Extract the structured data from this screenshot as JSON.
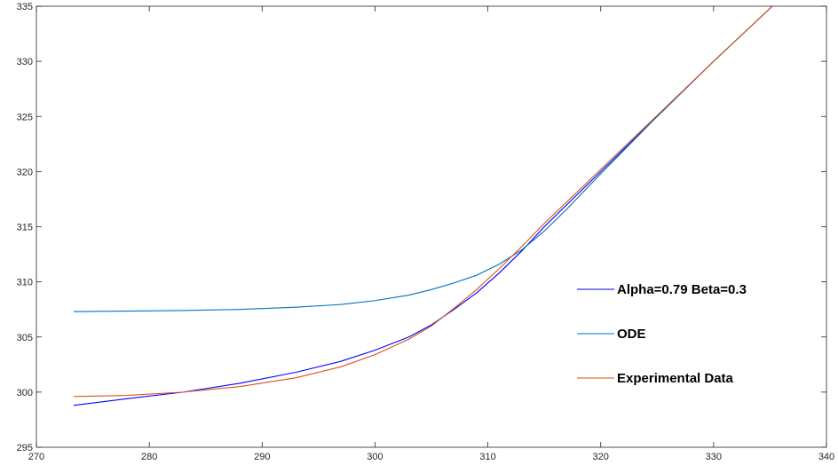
{
  "chart_data": {
    "type": "line",
    "title": "",
    "xlabel": "",
    "ylabel": "",
    "xlim": [
      270,
      340
    ],
    "ylim": [
      295,
      335
    ],
    "xticks": [
      270,
      280,
      290,
      300,
      310,
      320,
      330,
      340
    ],
    "yticks": [
      295,
      300,
      305,
      310,
      315,
      320,
      325,
      330,
      335
    ],
    "grid": false,
    "legend_position": "right",
    "series": [
      {
        "name": "Alpha=0.79 Beta=0.3",
        "color": "#0000ff",
        "points": [
          [
            273.3,
            298.8
          ],
          [
            278,
            299.4
          ],
          [
            283,
            300.0
          ],
          [
            288,
            300.8
          ],
          [
            293,
            301.8
          ],
          [
            297,
            302.8
          ],
          [
            300,
            303.8
          ],
          [
            303,
            305.0
          ],
          [
            305,
            306.1
          ],
          [
            307,
            307.5
          ],
          [
            309,
            309.0
          ],
          [
            311,
            310.8
          ],
          [
            313,
            312.8
          ],
          [
            315,
            315.0
          ],
          [
            320,
            320.0
          ],
          [
            325,
            325.0
          ],
          [
            330,
            330.0
          ],
          [
            335.2,
            335.0
          ]
        ]
      },
      {
        "name": "ODE",
        "color": "#0072bd",
        "points": [
          [
            273.3,
            307.3
          ],
          [
            278,
            307.35
          ],
          [
            283,
            307.4
          ],
          [
            288,
            307.5
          ],
          [
            293,
            307.7
          ],
          [
            297,
            307.95
          ],
          [
            300,
            308.3
          ],
          [
            303,
            308.8
          ],
          [
            305,
            309.3
          ],
          [
            307,
            309.9
          ],
          [
            309,
            310.6
          ],
          [
            311,
            311.6
          ],
          [
            313,
            312.9
          ],
          [
            315,
            314.6
          ],
          [
            317,
            316.6
          ],
          [
            320,
            319.8
          ],
          [
            325,
            325.0
          ],
          [
            330,
            330.0
          ],
          [
            335.2,
            335.0
          ]
        ]
      },
      {
        "name": "Experimental Data",
        "color": "#d95319",
        "points": [
          [
            273.3,
            299.6
          ],
          [
            278,
            299.7
          ],
          [
            283,
            300.0
          ],
          [
            288,
            300.5
          ],
          [
            293,
            301.3
          ],
          [
            297,
            302.3
          ],
          [
            300,
            303.4
          ],
          [
            303,
            304.8
          ],
          [
            305,
            306.0
          ],
          [
            307,
            307.6
          ],
          [
            309,
            309.3
          ],
          [
            311,
            311.2
          ],
          [
            313,
            313.2
          ],
          [
            315,
            315.3
          ],
          [
            320,
            320.2
          ],
          [
            325,
            325.1
          ],
          [
            330,
            330.0
          ],
          [
            335.2,
            335.0
          ]
        ]
      }
    ]
  }
}
